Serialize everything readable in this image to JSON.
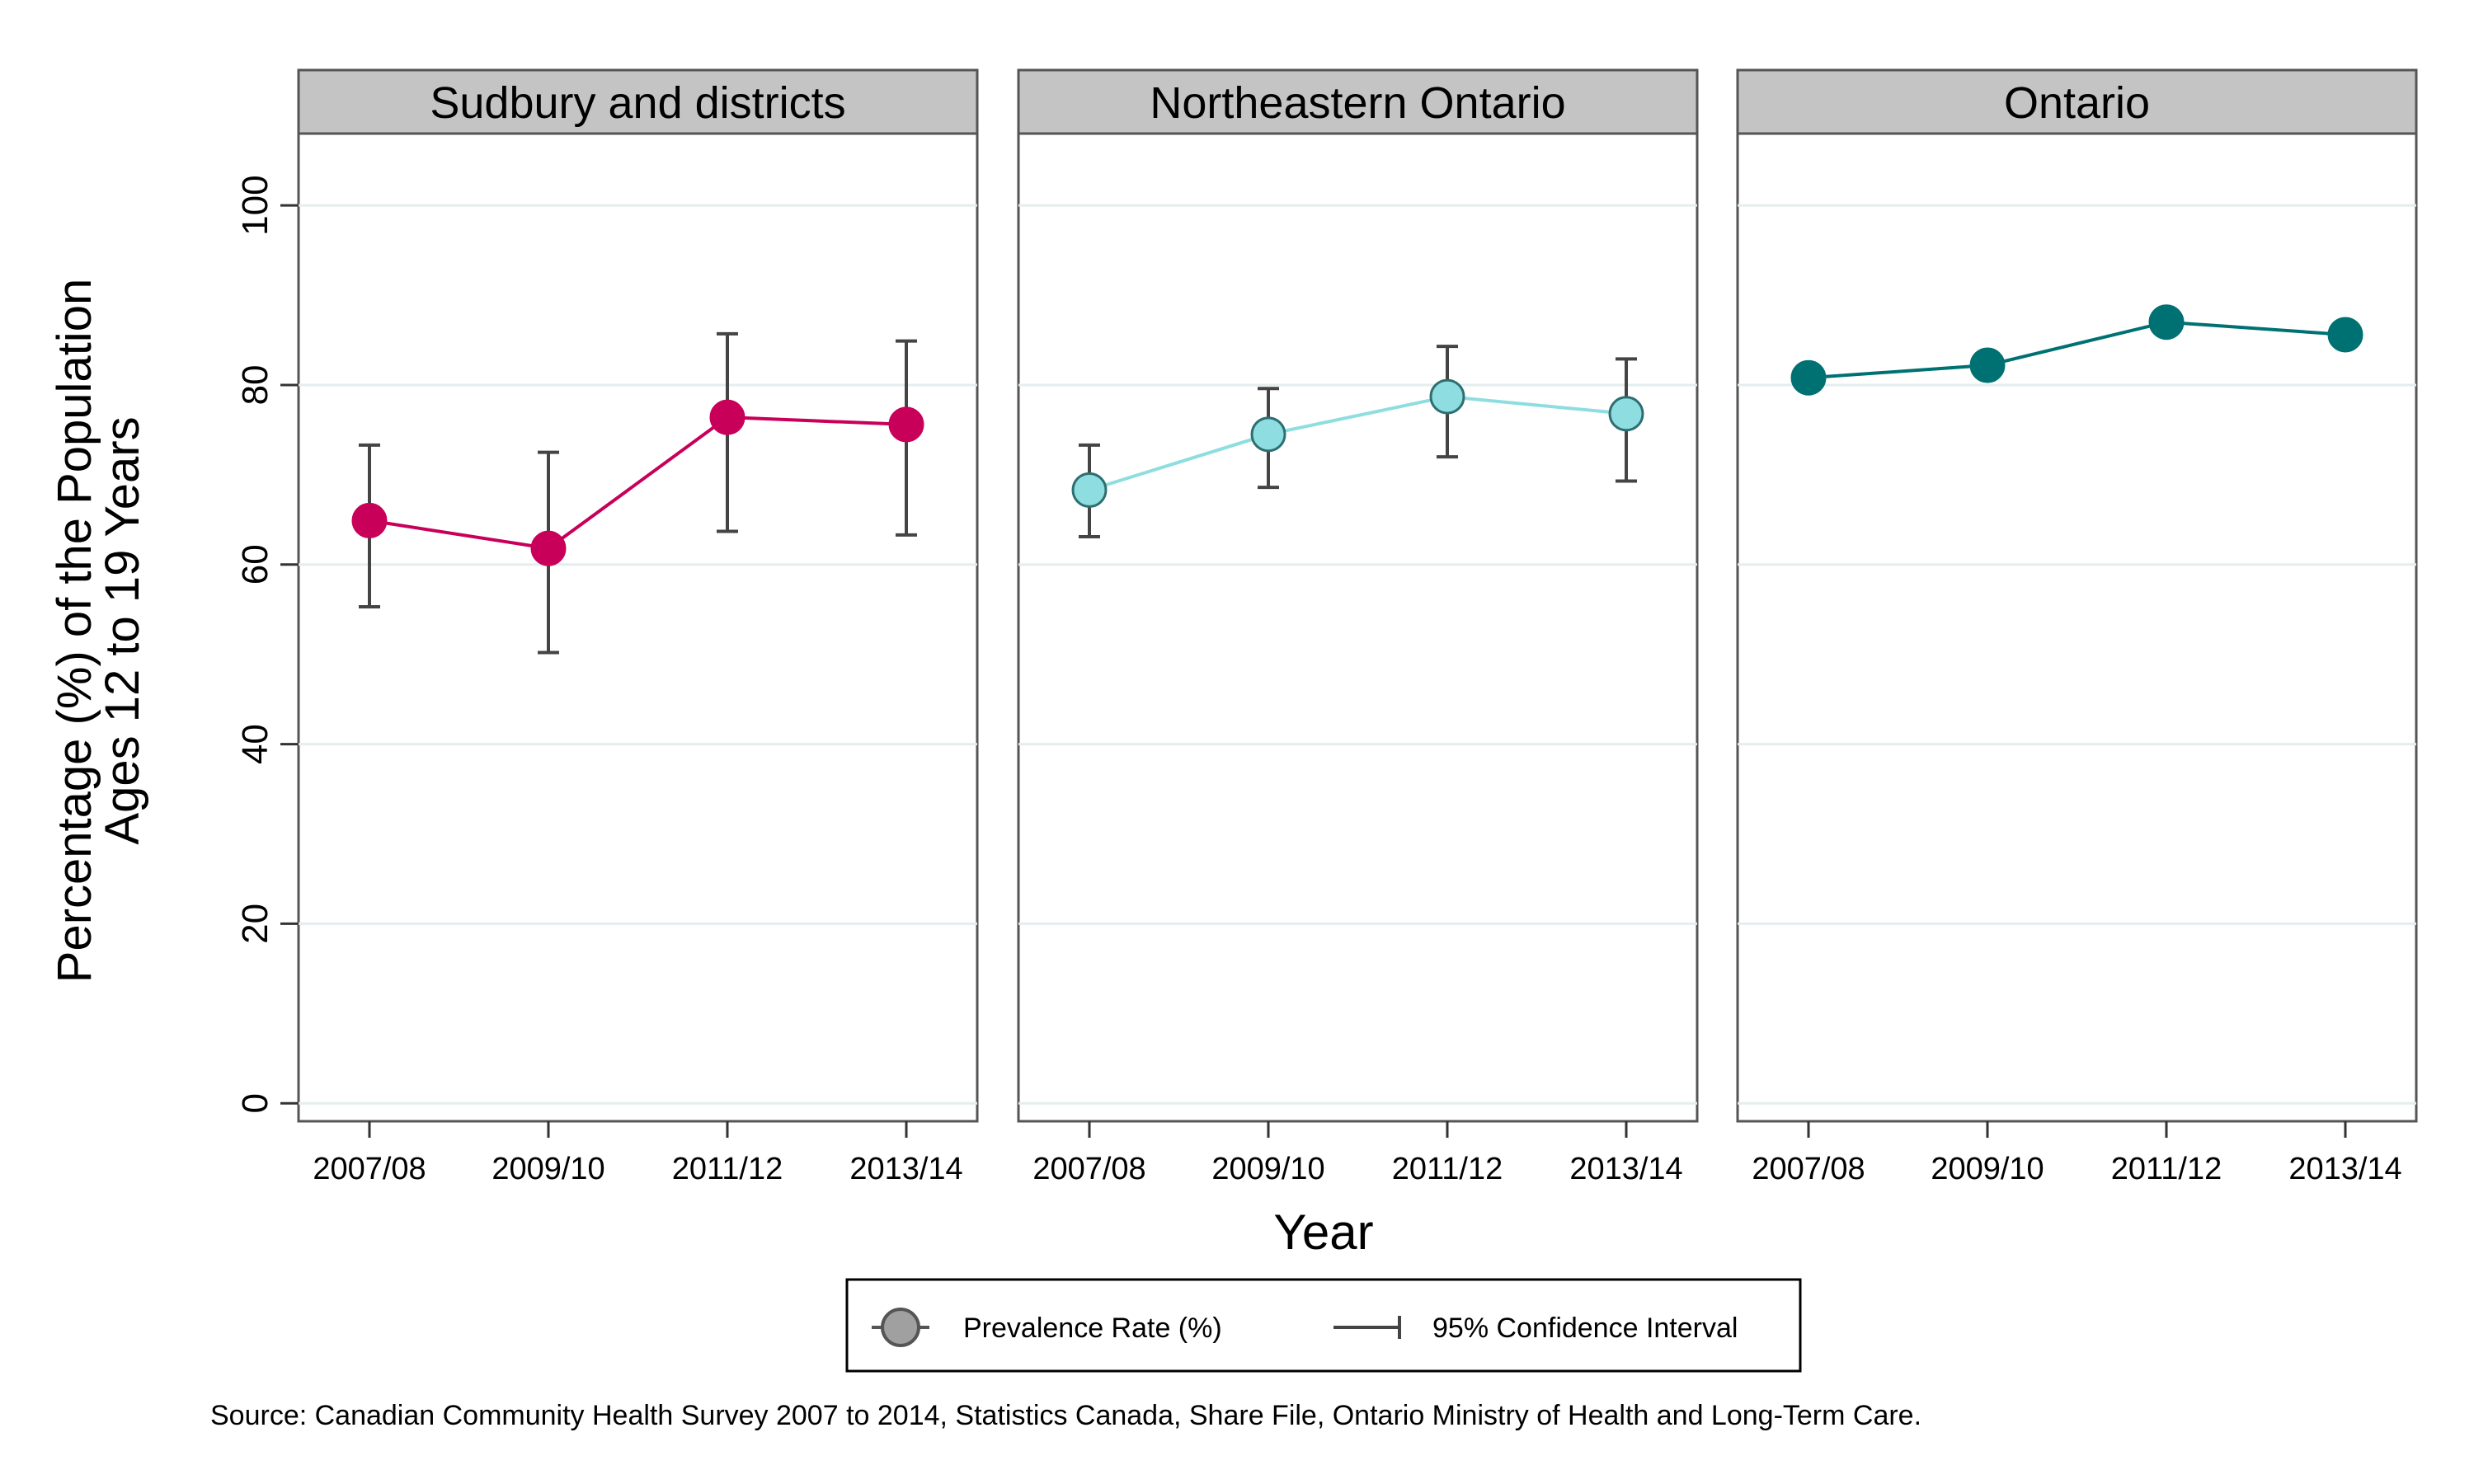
{
  "chart_data": {
    "type": "line",
    "panels": [
      {
        "title": "Sudbury and districts",
        "color": "#C8005A",
        "x": [
          "2007/08",
          "2009/10",
          "2011/12",
          "2013/14"
        ],
        "values": [
          64.9,
          61.8,
          76.4,
          75.6
        ],
        "ci_low": [
          55.3,
          50.2,
          63.7,
          63.3
        ],
        "ci_high": [
          73.3,
          72.5,
          85.7,
          84.9
        ]
      },
      {
        "title": "Northeastern Ontario",
        "color": "#8EDDE0",
        "x": [
          "2007/08",
          "2009/10",
          "2011/12",
          "2013/14"
        ],
        "values": [
          68.3,
          74.5,
          78.7,
          76.8
        ],
        "ci_low": [
          63.1,
          68.6,
          72.0,
          69.3
        ],
        "ci_high": [
          73.3,
          79.6,
          84.3,
          82.9
        ]
      },
      {
        "title": "Ontario",
        "color": "#007173",
        "x": [
          "2007/08",
          "2009/10",
          "2011/12",
          "2013/14"
        ],
        "values": [
          80.8,
          82.2,
          87.0,
          85.6
        ],
        "ci_low": [
          79.8,
          81.3,
          86.1,
          84.6
        ],
        "ci_high": [
          81.8,
          83.1,
          87.9,
          86.6
        ]
      }
    ],
    "ylabel_line1": "Percentage (%) of the Population",
    "ylabel_line2": "Ages 12 to 19 Years",
    "xlabel": "Year",
    "yticks": [
      0,
      20,
      40,
      60,
      80,
      100
    ],
    "ylim": [
      -2,
      108
    ],
    "grid": true,
    "legend": {
      "position": "bottom-center",
      "items": [
        "Prevalence Rate (%)",
        "95% Confidence Interval"
      ],
      "marker_color": "#A0A0A0"
    }
  },
  "source": "Source: Canadian Community Health Survey 2007 to 2014, Statistics Canada, Share File, Ontario Ministry of Health and Long-Term Care."
}
